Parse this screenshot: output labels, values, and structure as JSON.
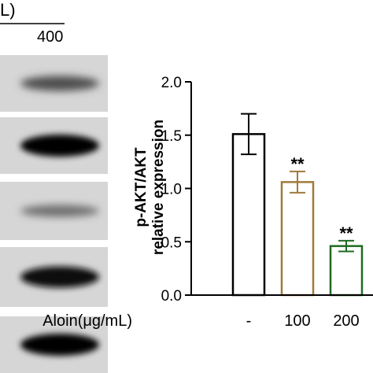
{
  "blot": {
    "header_fragment": "L)",
    "lane_label": "400",
    "bands": [
      {
        "strength": 0.55
      },
      {
        "strength": 1.0
      },
      {
        "strength": 0.35
      },
      {
        "strength": 0.95
      },
      {
        "strength": 1.0
      }
    ]
  },
  "chart_data": {
    "type": "bar",
    "categories": [
      "-",
      "100",
      "200"
    ],
    "series": [
      {
        "values": [
          1.51,
          1.06,
          0.46
        ],
        "errors": [
          0.19,
          0.1,
          0.05
        ],
        "colors": [
          "#000000",
          "#a07a3c",
          "#1f6b21"
        ]
      }
    ],
    "annotations": [
      "",
      "**",
      "**"
    ],
    "ylabel_line1": "p-AKT/AKT",
    "ylabel_line2": "relative expression",
    "xlabel": "Aloin(μg/mL)",
    "ylim": [
      0,
      2.0
    ],
    "yticks": [
      0.0,
      0.5,
      1.0,
      1.5,
      2.0
    ],
    "ytick_labels": [
      "0.0",
      "0.5",
      "1.0",
      "1.5",
      "2.0"
    ],
    "grid": false,
    "legend": "none"
  }
}
